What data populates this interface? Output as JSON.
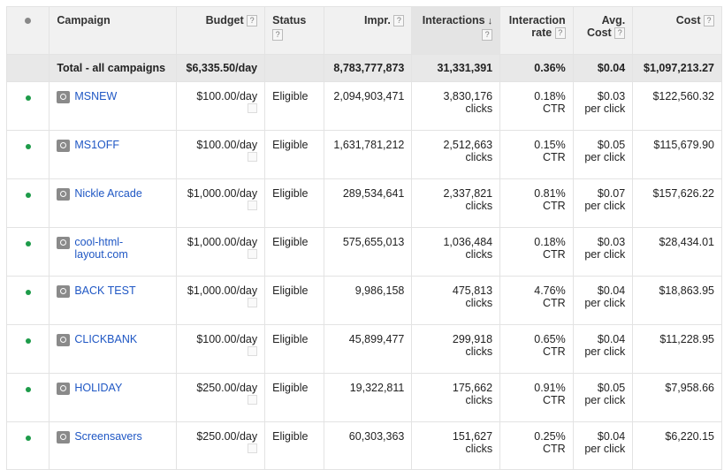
{
  "headers": {
    "campaign": "Campaign",
    "budget": "Budget",
    "status": "Status",
    "impr": "Impr.",
    "interactions": "Interactions",
    "interaction_rate_line1": "Interaction",
    "interaction_rate_line2": "rate",
    "avg_cost_line1": "Avg.",
    "avg_cost_line2": "Cost",
    "cost": "Cost",
    "help": "?",
    "sort_arrow": "↓"
  },
  "total": {
    "label": "Total - all campaigns",
    "budget": "$6,335.50/day",
    "impr": "8,783,777,873",
    "interactions": "31,331,391",
    "rate": "0.36%",
    "avg_cost": "$0.04",
    "cost": "$1,097,213.27"
  },
  "rows": [
    {
      "name": "MSNEW",
      "budget": "$100.00/day",
      "status": "Eligible",
      "impr": "2,094,903,471",
      "interactions": "3,830,176",
      "interactions_unit": "clicks",
      "rate": "0.18%",
      "rate_unit": "CTR",
      "avg_cost": "$0.03",
      "avg_cost_unit": "per click",
      "cost": "$122,560.32"
    },
    {
      "name": "MS1OFF",
      "budget": "$100.00/day",
      "status": "Eligible",
      "impr": "1,631,781,212",
      "interactions": "2,512,663",
      "interactions_unit": "clicks",
      "rate": "0.15%",
      "rate_unit": "CTR",
      "avg_cost": "$0.05",
      "avg_cost_unit": "per click",
      "cost": "$115,679.90"
    },
    {
      "name": "Nickle Arcade",
      "budget": "$1,000.00/day",
      "status": "Eligible",
      "impr": "289,534,641",
      "interactions": "2,337,821",
      "interactions_unit": "clicks",
      "rate": "0.81%",
      "rate_unit": "CTR",
      "avg_cost": "$0.07",
      "avg_cost_unit": "per click",
      "cost": "$157,626.22"
    },
    {
      "name": "cool-html-layout.com",
      "name_line1": "cool-html-",
      "name_line2": "layout.com",
      "budget": "$1,000.00/day",
      "status": "Eligible",
      "impr": "575,655,013",
      "interactions": "1,036,484",
      "interactions_unit": "clicks",
      "rate": "0.18%",
      "rate_unit": "CTR",
      "avg_cost": "$0.03",
      "avg_cost_unit": "per click",
      "cost": "$28,434.01"
    },
    {
      "name": "BACK TEST",
      "budget": "$1,000.00/day",
      "status": "Eligible",
      "impr": "9,986,158",
      "interactions": "475,813",
      "interactions_unit": "clicks",
      "rate": "4.76%",
      "rate_unit": "CTR",
      "avg_cost": "$0.04",
      "avg_cost_unit": "per click",
      "cost": "$18,863.95"
    },
    {
      "name": "CLICKBANK",
      "budget": "$100.00/day",
      "status": "Eligible",
      "impr": "45,899,477",
      "interactions": "299,918",
      "interactions_unit": "clicks",
      "rate": "0.65%",
      "rate_unit": "CTR",
      "avg_cost": "$0.04",
      "avg_cost_unit": "per click",
      "cost": "$11,228.95"
    },
    {
      "name": "HOLIDAY",
      "budget": "$250.00/day",
      "status": "Eligible",
      "impr": "19,322,811",
      "interactions": "175,662",
      "interactions_unit": "clicks",
      "rate": "0.91%",
      "rate_unit": "CTR",
      "avg_cost": "$0.05",
      "avg_cost_unit": "per click",
      "cost": "$7,958.66"
    },
    {
      "name": "Screensavers",
      "budget": "$250.00/day",
      "status": "Eligible",
      "impr": "60,303,363",
      "interactions": "151,627",
      "interactions_unit": "clicks",
      "rate": "0.25%",
      "rate_unit": "CTR",
      "avg_cost": "$0.04",
      "avg_cost_unit": "per click",
      "cost": "$6,220.15"
    }
  ],
  "colors": {
    "status_dot": "#1d9b49",
    "link": "#1f57c4"
  },
  "icons": {
    "campaign": "campaign-type-icon",
    "edit": "budget-edit-icon",
    "status": "status-dot-icon"
  }
}
